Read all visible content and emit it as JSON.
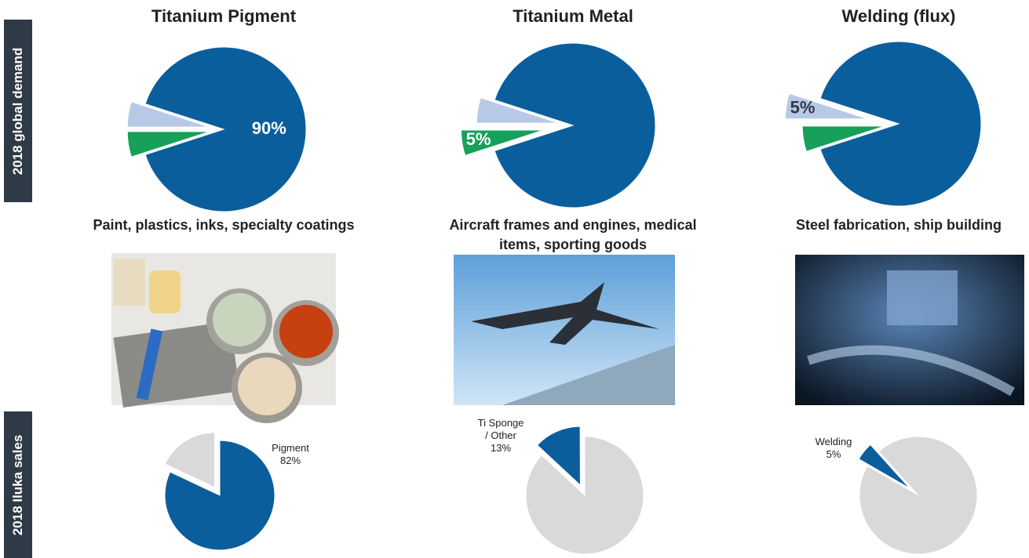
{
  "row_labels": [
    "2018 global demand",
    "2018 Iluka sales"
  ],
  "chart_data": [
    {
      "type": "pie",
      "title": "Titanium Pigment",
      "annotation": "Paint, plastics, inks, specialty coatings",
      "values": [
        90,
        5,
        5
      ],
      "value_labels": [
        "90%",
        null,
        null
      ],
      "colors": [
        "#0b5e9c",
        "#16a05a",
        "#b8c9e6"
      ]
    },
    {
      "type": "pie",
      "title": "Titanium Metal",
      "annotation": "Aircraft frames and engines, medical items, sporting goods",
      "values": [
        90,
        5,
        5
      ],
      "value_labels": [
        null,
        "5%",
        null
      ],
      "colors": [
        "#0b5e9c",
        "#16a05a",
        "#b8c9e6"
      ]
    },
    {
      "type": "pie",
      "title": "Welding (flux)",
      "annotation": "Steel fabrication, ship building",
      "values": [
        90,
        5,
        5
      ],
      "value_labels": [
        null,
        null,
        "5%"
      ],
      "colors": [
        "#0b5e9c",
        "#16a05a",
        "#b8c9e6"
      ]
    },
    {
      "type": "pie",
      "categories": [
        "Pigment",
        null
      ],
      "values": [
        82,
        18
      ],
      "value_labels": [
        "82%",
        null
      ],
      "colors": [
        "#0b5e9c",
        "#d9d9d9"
      ]
    },
    {
      "type": "pie",
      "categories": [
        "Ti Sponge / Other",
        null
      ],
      "values": [
        13,
        87
      ],
      "value_labels": [
        "13%",
        null
      ],
      "colors": [
        "#0b5e9c",
        "#d9d9d9"
      ]
    },
    {
      "type": "pie",
      "categories": [
        "Welding",
        null
      ],
      "values": [
        5,
        95
      ],
      "value_labels": [
        "5%",
        null
      ],
      "colors": [
        "#0b5e9c",
        "#d9d9d9"
      ]
    }
  ]
}
